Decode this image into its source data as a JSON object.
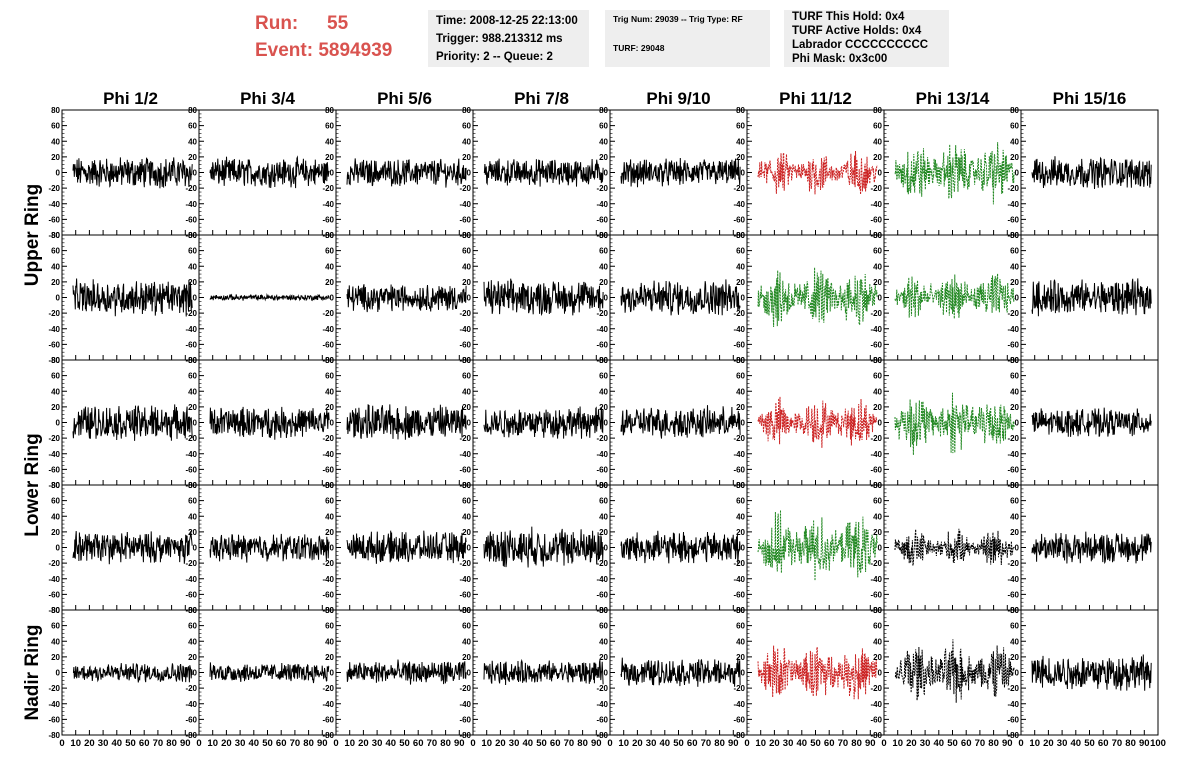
{
  "header": {
    "run_label": "Run:",
    "run_value": "55",
    "event_label": "Event:",
    "event_value": "5894939",
    "info1": [
      "Time: 2008-12-25 22:13:00",
      "Trigger: 988.213312 ms",
      "Priority: 2 -- Queue: 2"
    ],
    "info2": [
      "Trig Num: 29039 -- Trig Type: RF",
      "TURF: 29048"
    ],
    "info3": [
      "TURF This Hold: 0x4",
      "TURF Active Holds: 0x4",
      "Labrador CCCCCCCCCC",
      "Phi Mask: 0x3c00"
    ]
  },
  "chart_data": {
    "type": "line",
    "title": "",
    "columns": [
      "Phi 1/2",
      "Phi 3/4",
      "Phi 5/6",
      "Phi 7/8",
      "Phi 9/10",
      "Phi 11/12",
      "Phi 13/14",
      "Phi 15/16"
    ],
    "ring_labels": [
      {
        "text": "Upper Ring",
        "rows": [
          0,
          1
        ]
      },
      {
        "text": "Lower Ring",
        "rows": [
          2,
          3
        ]
      },
      {
        "text": "Nadir Ring",
        "rows": [
          4,
          4
        ]
      }
    ],
    "xlim": [
      0,
      100
    ],
    "x_tick_values": [
      0,
      10,
      20,
      30,
      40,
      50,
      60,
      70,
      80,
      90,
      100
    ],
    "ylim": [
      -80,
      80
    ],
    "y_tick_values": [
      -80,
      -60,
      -40,
      -20,
      0,
      20,
      40,
      60,
      80
    ],
    "colors": {
      "normal": "#000000",
      "red": "#cc2222",
      "green": "#228822",
      "black_dashed": "#000000"
    },
    "panels": [
      [
        {
          "style": "normal",
          "amp": 16
        },
        {
          "style": "normal",
          "amp": 15
        },
        {
          "style": "normal",
          "amp": 14
        },
        {
          "style": "normal",
          "amp": 14
        },
        {
          "style": "normal",
          "amp": 14
        },
        {
          "style": "red",
          "amp": 20
        },
        {
          "style": "green",
          "amp": 28
        },
        {
          "style": "normal",
          "amp": 16
        }
      ],
      [
        {
          "style": "normal",
          "amp": 18
        },
        {
          "style": "normal",
          "amp": 3
        },
        {
          "style": "normal",
          "amp": 14
        },
        {
          "style": "normal",
          "amp": 18
        },
        {
          "style": "normal",
          "amp": 18
        },
        {
          "style": "green",
          "amp": 28
        },
        {
          "style": "green",
          "amp": 22
        },
        {
          "style": "normal",
          "amp": 18
        }
      ],
      [
        {
          "style": "normal",
          "amp": 18
        },
        {
          "style": "normal",
          "amp": 16
        },
        {
          "style": "normal",
          "amp": 18
        },
        {
          "style": "normal",
          "amp": 16
        },
        {
          "style": "normal",
          "amp": 16
        },
        {
          "style": "red",
          "amp": 22
        },
        {
          "style": "green",
          "amp": 28
        },
        {
          "style": "normal",
          "amp": 14
        }
      ],
      [
        {
          "style": "normal",
          "amp": 16
        },
        {
          "style": "normal",
          "amp": 14
        },
        {
          "style": "normal",
          "amp": 16
        },
        {
          "style": "normal",
          "amp": 20
        },
        {
          "style": "normal",
          "amp": 16
        },
        {
          "style": "green",
          "amp": 30
        },
        {
          "style": "black_dashed",
          "amp": 16
        },
        {
          "style": "normal",
          "amp": 16
        }
      ],
      [
        {
          "style": "normal",
          "amp": 10
        },
        {
          "style": "normal",
          "amp": 10
        },
        {
          "style": "normal",
          "amp": 12
        },
        {
          "style": "normal",
          "amp": 12
        },
        {
          "style": "normal",
          "amp": 14
        },
        {
          "style": "red",
          "amp": 26
        },
        {
          "style": "black_dashed",
          "amp": 28
        },
        {
          "style": "normal",
          "amp": 18
        }
      ]
    ]
  }
}
